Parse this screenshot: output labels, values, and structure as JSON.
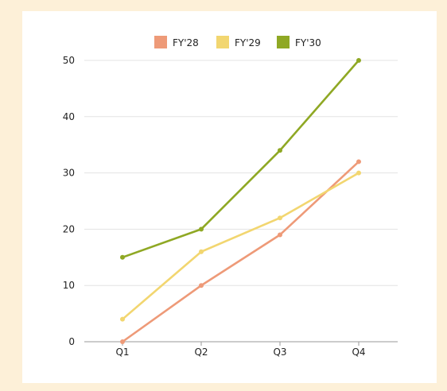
{
  "chart_data": {
    "type": "line",
    "title": "",
    "xlabel": "",
    "ylabel": "",
    "categories": [
      "Q1",
      "Q2",
      "Q3",
      "Q4"
    ],
    "ylim": [
      0,
      50
    ],
    "yticks": [
      0,
      10,
      20,
      30,
      40,
      50
    ],
    "grid": true,
    "legend_position": "top-center",
    "series": [
      {
        "name": "FY'28",
        "color": "#ee9a78",
        "values": [
          0,
          10,
          19,
          32
        ]
      },
      {
        "name": "FY'29",
        "color": "#f2d670",
        "values": [
          4,
          16,
          22,
          30
        ]
      },
      {
        "name": "FY'30",
        "color": "#8fa824",
        "values": [
          15,
          20,
          34,
          50
        ]
      }
    ]
  }
}
